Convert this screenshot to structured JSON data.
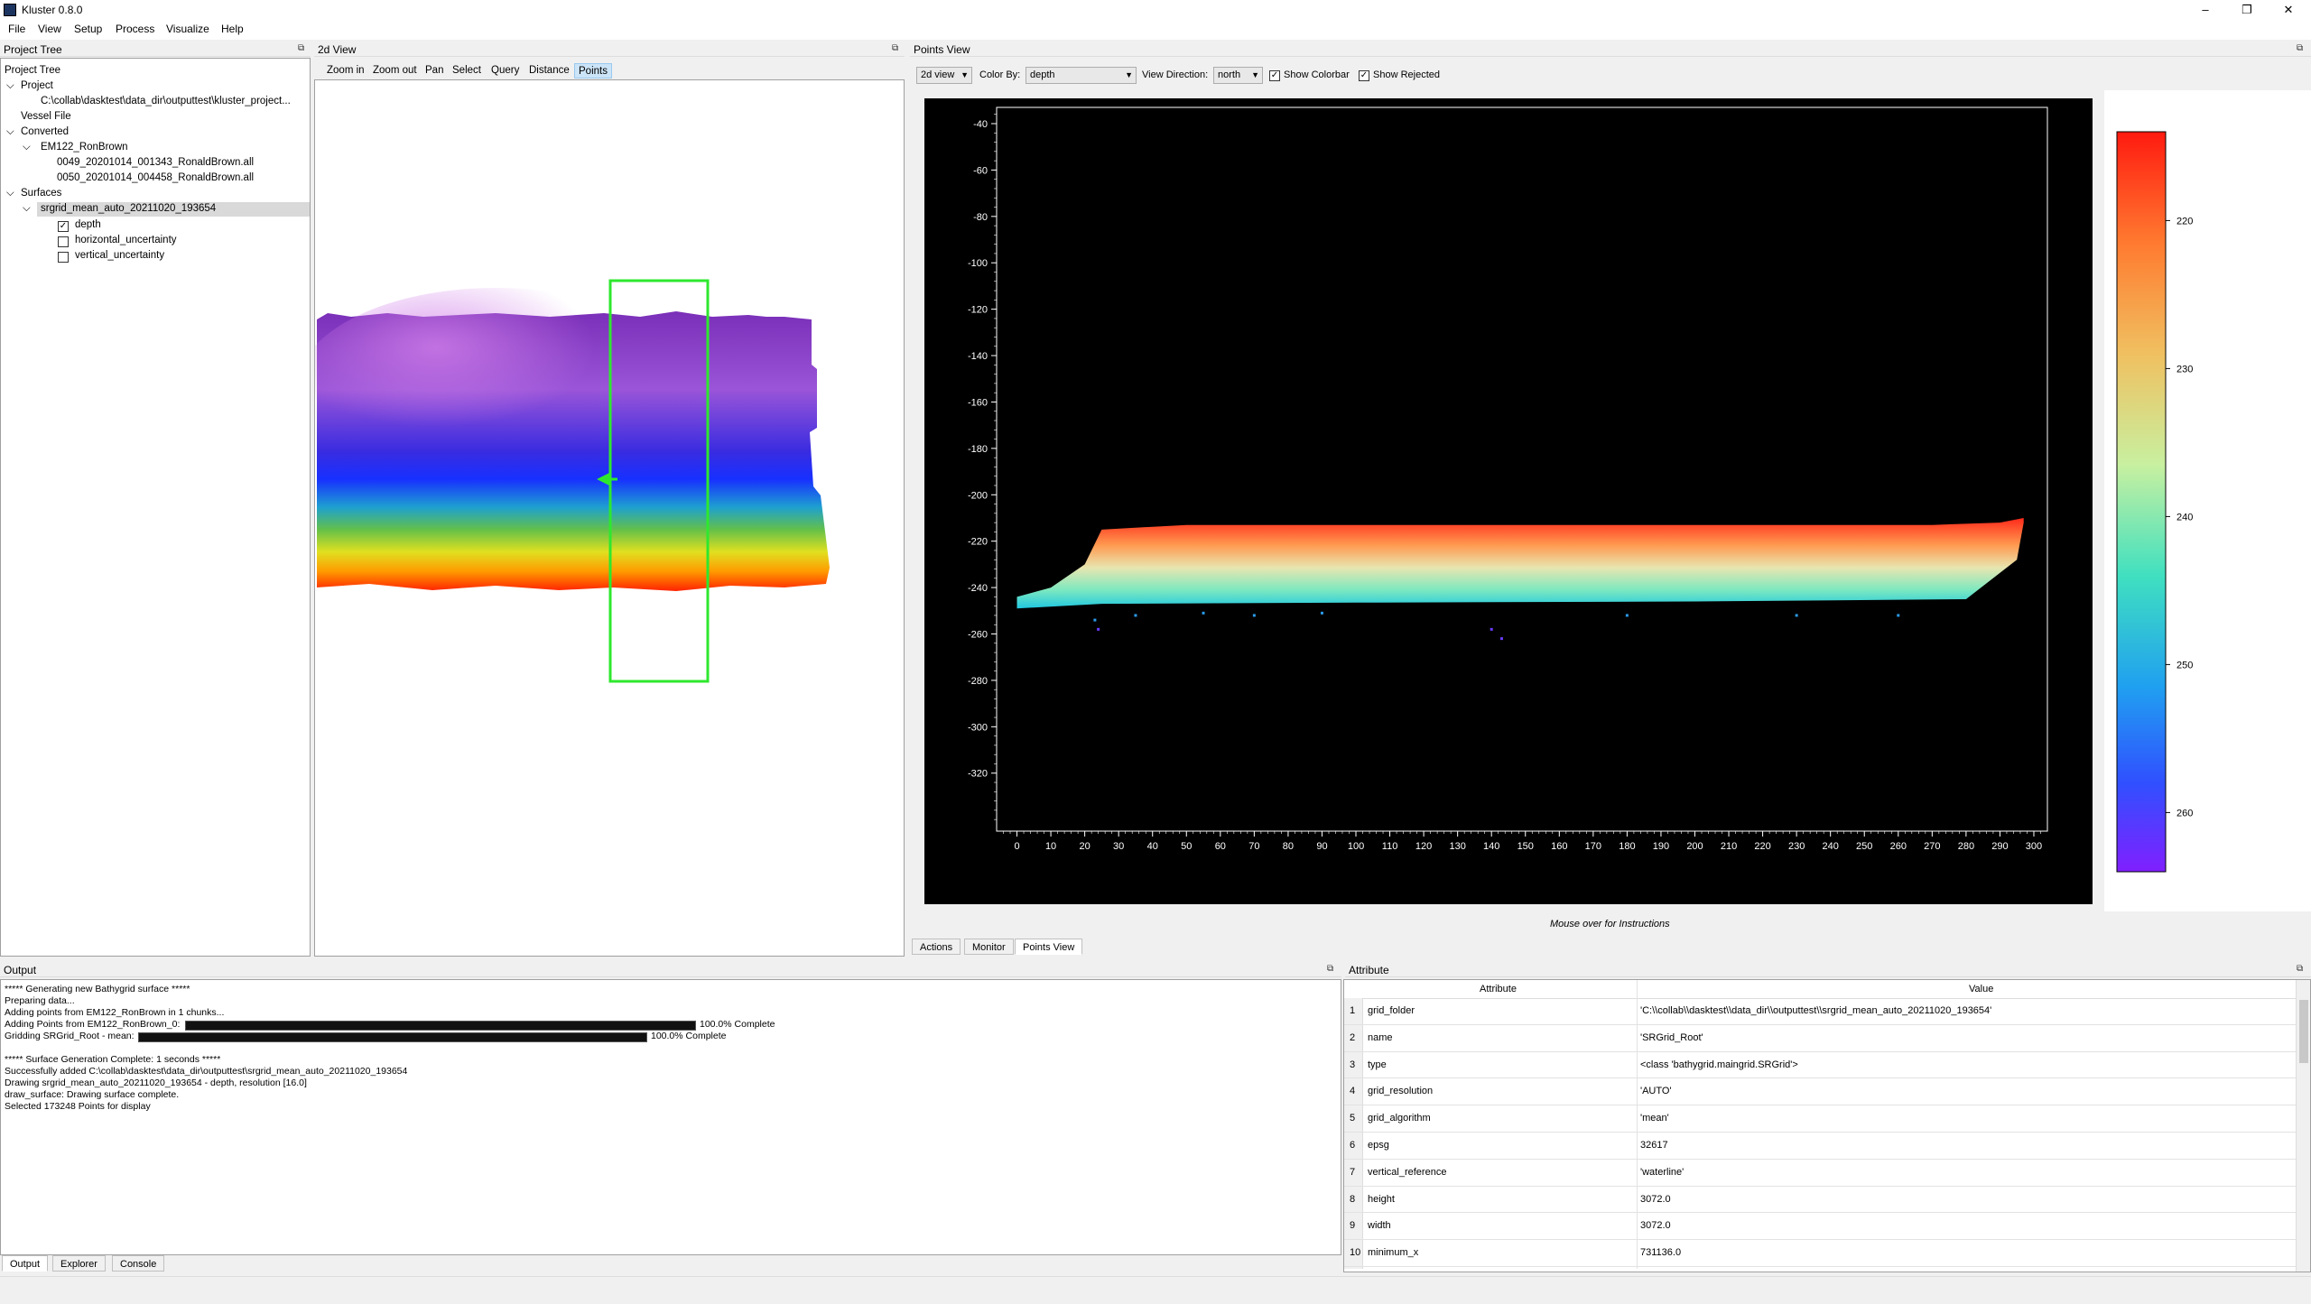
{
  "app": {
    "title": "Kluster 0.8.0",
    "window_controls": [
      "–",
      "❐",
      "✕"
    ]
  },
  "menu": [
    "File",
    "View",
    "Setup",
    "Process",
    "Visualize",
    "Help"
  ],
  "project_tree": {
    "dock_title": "Project Tree",
    "header": "Project Tree",
    "project_label": "Project",
    "project_path": "C:\\collab\\dasktest\\data_dir\\outputtest\\kluster_project...",
    "vessel_file": "Vessel File",
    "converted_label": "Converted",
    "vessel": "EM122_RonBrown",
    "lines": [
      "0049_20201014_001343_RonaldBrown.all",
      "0050_20201014_004458_RonaldBrown.all"
    ],
    "surfaces_label": "Surfaces",
    "surface": "srgrid_mean_auto_20211020_193654",
    "layers": [
      {
        "name": "depth",
        "checked": true
      },
      {
        "name": "horizontal_uncertainty",
        "checked": false
      },
      {
        "name": "vertical_uncertainty",
        "checked": false
      }
    ]
  },
  "view2d": {
    "dock_title": "2d View",
    "tools": [
      "Zoom in",
      "Zoom out",
      "Pan",
      "Select",
      "Query",
      "Distance",
      "Points"
    ],
    "active_tool": "Points"
  },
  "points_view": {
    "dock_title": "Points View",
    "view_mode": "2d view",
    "color_by_label": "Color By:",
    "color_by": "depth",
    "view_direction_label": "View Direction:",
    "view_direction": "north",
    "show_colorbar_label": "Show Colorbar",
    "show_colorbar": true,
    "show_rejected_label": "Show Rejected",
    "show_rejected": true,
    "instructions": "Mouse over for Instructions",
    "tabs": [
      "Actions",
      "Monitor",
      "Points View"
    ],
    "active_tab": "Points View"
  },
  "chart_data": {
    "type": "scatter",
    "title": "",
    "xlabel": "",
    "ylabel": "",
    "xlim": [
      -6,
      304
    ],
    "ylim": [
      -345,
      -33
    ],
    "xticks": [
      0,
      10,
      20,
      30,
      40,
      50,
      60,
      70,
      80,
      90,
      100,
      110,
      120,
      130,
      140,
      150,
      160,
      170,
      180,
      190,
      200,
      210,
      220,
      230,
      240,
      250,
      260,
      270,
      280,
      290,
      300
    ],
    "yticks": [
      -40,
      -60,
      -80,
      -100,
      -120,
      -140,
      -160,
      -180,
      -200,
      -220,
      -240,
      -260,
      -280,
      -300,
      -320
    ],
    "series": [
      {
        "top_profile": [
          [
            0,
            -244
          ],
          [
            10,
            -240
          ],
          [
            20,
            -230
          ],
          [
            25,
            -215
          ],
          [
            50,
            -213
          ],
          [
            150,
            -213
          ],
          [
            270,
            -213
          ],
          [
            290,
            -212
          ],
          [
            297,
            -210
          ]
        ],
        "bottom_profile": [
          [
            0,
            -249
          ],
          [
            25,
            -247
          ],
          [
            100,
            -246.5
          ],
          [
            200,
            -246
          ],
          [
            280,
            -245
          ],
          [
            295,
            -228
          ],
          [
            297,
            -212
          ]
        ]
      }
    ],
    "outliers": [
      [
        23,
        -254
      ],
      [
        24,
        -258
      ],
      [
        35,
        -252
      ],
      [
        55,
        -251
      ],
      [
        70,
        -252
      ],
      [
        90,
        -251
      ],
      [
        140,
        -258
      ],
      [
        143,
        -262
      ],
      [
        180,
        -252
      ],
      [
        230,
        -252
      ],
      [
        260,
        -252
      ]
    ],
    "colorbar": {
      "ticks": [
        220,
        230,
        240,
        250,
        260
      ],
      "range": [
        214,
        264
      ],
      "colormap": "rainbow (red shallow → violet deep)"
    }
  },
  "output": {
    "dock_title": "Output",
    "lines": [
      "***** Generating new Bathygrid surface *****",
      "Preparing data...",
      "Adding points from EM122_RonBrown in 1 chunks...",
      "Adding Points from EM122_RonBrown_0:",
      "Gridding SRGrid_Root - mean:",
      "",
      "***** Surface Generation Complete: 1 seconds *****",
      "Successfully added C:\\collab\\dasktest\\data_dir\\outputtest\\srgrid_mean_auto_20211020_193654",
      "Drawing srgrid_mean_auto_20211020_193654 - depth, resolution [16.0]",
      "draw_surface: Drawing surface complete.",
      "Selected 173248 Points for display"
    ],
    "progress1": "100.0% Complete",
    "progress2": "100.0% Complete",
    "tabs": [
      "Output",
      "Explorer",
      "Console"
    ],
    "active_tab": "Output"
  },
  "attribute": {
    "dock_title": "Attribute",
    "col_attr": "Attribute",
    "col_value": "Value",
    "rows": [
      {
        "n": "1",
        "a": "grid_folder",
        "v": "'C:\\\\collab\\\\dasktest\\\\data_dir\\\\outputtest\\\\srgrid_mean_auto_20211020_193654'"
      },
      {
        "n": "2",
        "a": "name",
        "v": "'SRGrid_Root'"
      },
      {
        "n": "3",
        "a": "type",
        "v": "<class 'bathygrid.maingrid.SRGrid'>"
      },
      {
        "n": "4",
        "a": "grid_resolution",
        "v": "'AUTO'"
      },
      {
        "n": "5",
        "a": "grid_algorithm",
        "v": "'mean'"
      },
      {
        "n": "6",
        "a": "epsg",
        "v": "32617"
      },
      {
        "n": "7",
        "a": "vertical_reference",
        "v": "'waterline'"
      },
      {
        "n": "8",
        "a": "height",
        "v": "3072.0"
      },
      {
        "n": "9",
        "a": "width",
        "v": "3072.0"
      },
      {
        "n": "10",
        "a": "minimum_x",
        "v": "731136.0"
      }
    ]
  }
}
